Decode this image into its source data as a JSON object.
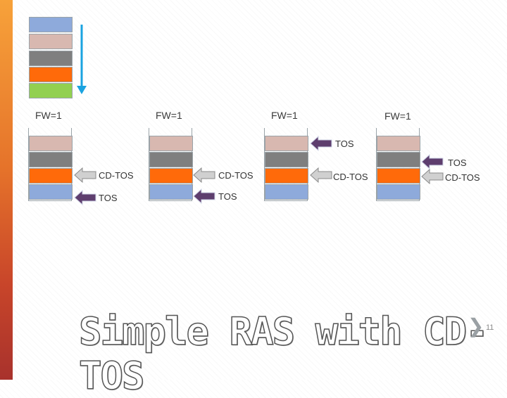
{
  "colors": {
    "blue": "#8eaadb",
    "pink": "#d8b8b0",
    "gray": "#7f7f7f",
    "orange": "#ff6a0a",
    "green": "#92d050",
    "arrow_blue": "#1aa3e0",
    "pointer_purple": "#5e3e6e",
    "pointer_light": "#d0d0d0"
  },
  "legend_stack": [
    "blue",
    "pink",
    "gray",
    "orange",
    "green"
  ],
  "stacks": [
    {
      "fw_label": "FW=1",
      "cd_tos_label": "CD-TOS",
      "tos_label": "TOS"
    },
    {
      "fw_label": "FW=1",
      "cd_tos_label": "CD-TOS",
      "tos_label": "TOS"
    },
    {
      "fw_label": "FW=1",
      "tos_label": "TOS",
      "cd_tos_label": "CD-TOS"
    },
    {
      "fw_label": "FW=1",
      "tos_label": "TOS",
      "cd_tos_label": "CD-TOS"
    }
  ],
  "title": "Simple RAS with CD-TOS",
  "page_number": "11"
}
